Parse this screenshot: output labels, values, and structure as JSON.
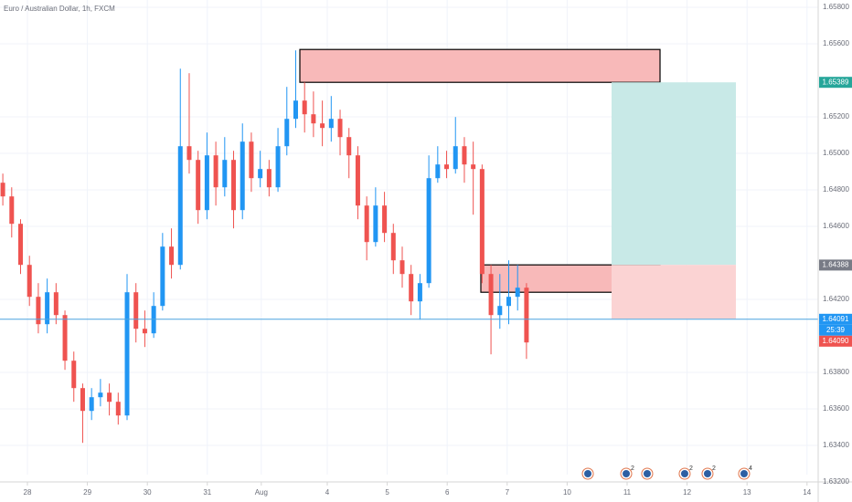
{
  "chart_data": {
    "type": "candlestick",
    "title": "Euro / Australian Dollar, 1h, FXCM",
    "up_color": "#2196f3",
    "down_color": "#ef5350",
    "grid": true,
    "xlim": [
      -0.457,
      13.186
    ],
    "ylim": [
      1.6324,
      1.6584
    ],
    "xticks": [
      {
        "value": 0,
        "label": "28"
      },
      {
        "value": 1,
        "label": "29"
      },
      {
        "value": 2,
        "label": "30"
      },
      {
        "value": 3,
        "label": "31"
      },
      {
        "value": 3.9,
        "label": "Aug"
      },
      {
        "value": 5,
        "label": "4"
      },
      {
        "value": 6,
        "label": "5"
      },
      {
        "value": 7,
        "label": "6"
      },
      {
        "value": 8,
        "label": "7"
      },
      {
        "value": 9,
        "label": "10"
      },
      {
        "value": 10,
        "label": "11"
      },
      {
        "value": 11,
        "label": "12"
      },
      {
        "value": 12,
        "label": "13"
      },
      {
        "value": 13,
        "label": "14"
      }
    ],
    "yticks": [
      {
        "value": 1.632,
        "label": "1.63200"
      },
      {
        "value": 1.634,
        "label": "1.63400"
      },
      {
        "value": 1.636,
        "label": "1.63600"
      },
      {
        "value": 1.638,
        "label": "1.63800"
      },
      {
        "value": 1.642,
        "label": "1.64200"
      },
      {
        "value": 1.646,
        "label": "1.64600"
      },
      {
        "value": 1.648,
        "label": "1.64800"
      },
      {
        "value": 1.65,
        "label": "1.65000"
      },
      {
        "value": 1.652,
        "label": "1.65200"
      },
      {
        "value": 1.656,
        "label": "1.65600"
      },
      {
        "value": 1.658,
        "label": "1.65800"
      }
    ],
    "x": [
      -0.41,
      -0.262,
      -0.114,
      0.034,
      0.182,
      0.33,
      0.478,
      0.626,
      0.774,
      0.922,
      1.07,
      1.218,
      1.366,
      1.514,
      1.662,
      1.81,
      1.958,
      2.106,
      2.254,
      2.402,
      2.55,
      2.698,
      2.846,
      2.994,
      3.142,
      3.29,
      3.438,
      3.586,
      3.734,
      3.882,
      4.03,
      4.178,
      4.326,
      4.474,
      4.622,
      4.77,
      4.918,
      5.066,
      5.214,
      5.362,
      5.51,
      5.658,
      5.806,
      5.954,
      6.102,
      6.25,
      6.398,
      6.546,
      6.694,
      6.842,
      6.99,
      7.138,
      7.286,
      7.434,
      7.582,
      7.73,
      7.878,
      8.026,
      8.174,
      8.322
    ],
    "open": [
      1.64839,
      1.64764,
      1.64614,
      1.64389,
      1.64214,
      1.64064,
      1.64239,
      1.64114,
      1.63864,
      1.63714,
      1.63589,
      1.63664,
      1.63689,
      1.63639,
      1.63564,
      1.64239,
      1.64039,
      1.64014,
      1.64164,
      1.64489,
      1.64389,
      1.65039,
      1.64964,
      1.64689,
      1.64989,
      1.64814,
      1.64964,
      1.64689,
      1.65064,
      1.64864,
      1.64914,
      1.64814,
      1.65039,
      1.65189,
      1.65289,
      1.65214,
      1.65164,
      1.65139,
      1.65189,
      1.65089,
      1.64989,
      1.64714,
      1.64514,
      1.64714,
      1.64564,
      1.64414,
      1.64339,
      1.64189,
      1.64289,
      1.64864,
      1.64939,
      1.64914,
      1.65039,
      1.64939,
      1.64914,
      1.64339,
      1.64114,
      1.64164,
      1.64214,
      1.64264
    ],
    "high": [
      1.64889,
      1.64814,
      1.64639,
      1.64439,
      1.64289,
      1.64314,
      1.64289,
      1.64139,
      1.63914,
      1.63739,
      1.63714,
      1.63764,
      1.63739,
      1.63689,
      1.64339,
      1.64289,
      1.64139,
      1.64239,
      1.64564,
      1.64589,
      1.65464,
      1.65439,
      1.65014,
      1.65114,
      1.65064,
      1.65089,
      1.65014,
      1.65164,
      1.65114,
      1.65014,
      1.64964,
      1.65139,
      1.65364,
      1.65564,
      1.65389,
      1.65339,
      1.65289,
      1.65314,
      1.65239,
      1.65139,
      1.65039,
      1.64764,
      1.64814,
      1.64789,
      1.64614,
      1.64489,
      1.64389,
      1.64339,
      1.64989,
      1.65039,
      1.65014,
      1.65199,
      1.65089,
      1.65064,
      1.64939,
      1.64389,
      1.64339,
      1.64414,
      1.64389,
      1.64289
    ],
    "low": [
      1.64714,
      1.64539,
      1.64339,
      1.64164,
      1.64014,
      1.64014,
      1.64064,
      1.63814,
      1.63639,
      1.63414,
      1.63539,
      1.63614,
      1.63564,
      1.63514,
      1.63539,
      1.63964,
      1.63939,
      1.63989,
      1.64139,
      1.64314,
      1.64364,
      1.64889,
      1.64614,
      1.64639,
      1.64714,
      1.64764,
      1.64589,
      1.64639,
      1.64789,
      1.64814,
      1.64764,
      1.64789,
      1.64989,
      1.65139,
      1.65114,
      1.65089,
      1.65039,
      1.65064,
      1.64989,
      1.64864,
      1.64639,
      1.64414,
      1.64489,
      1.64514,
      1.64339,
      1.64264,
      1.64114,
      1.64089,
      1.64264,
      1.64839,
      1.64864,
      1.64889,
      1.64839,
      1.64664,
      1.64289,
      1.63899,
      1.64039,
      1.64064,
      1.64139,
      1.63874
    ],
    "close": [
      1.64764,
      1.64614,
      1.64389,
      1.64214,
      1.64064,
      1.64239,
      1.64114,
      1.63864,
      1.63714,
      1.63589,
      1.63664,
      1.63689,
      1.63639,
      1.63564,
      1.64239,
      1.64039,
      1.64014,
      1.64164,
      1.64489,
      1.64389,
      1.65039,
      1.64964,
      1.64689,
      1.64989,
      1.64814,
      1.64964,
      1.64689,
      1.65064,
      1.64864,
      1.64914,
      1.64814,
      1.65039,
      1.65189,
      1.65289,
      1.65214,
      1.65164,
      1.65139,
      1.65189,
      1.65089,
      1.64989,
      1.64714,
      1.64514,
      1.64714,
      1.64564,
      1.64414,
      1.64339,
      1.64189,
      1.64289,
      1.64864,
      1.64939,
      1.64914,
      1.65039,
      1.64939,
      1.64914,
      1.64339,
      1.64114,
      1.64164,
      1.64214,
      1.64264,
      1.63964
    ],
    "zones": [
      {
        "x": [
          4.543,
          10.549
        ],
        "y": [
          1.65389,
          1.65569
        ],
        "fill": "#f8b9b9",
        "stroke": "#000000"
      },
      {
        "x": [
          7.561,
          10.549
        ],
        "y": [
          1.64239,
          1.64389
        ],
        "fill": "#f8b9b9",
        "stroke": "#000000"
      },
      {
        "x": [
          9.741,
          11.814
        ],
        "y": [
          1.64389,
          1.65389
        ],
        "fill": "#c8e9e7",
        "stroke": "none"
      },
      {
        "x": [
          9.741,
          11.814
        ],
        "y": [
          1.64094,
          1.64389
        ],
        "fill": "#fbd3d3",
        "stroke": "none"
      }
    ],
    "price_line": {
      "value": 1.64091,
      "color": "#4aa3df"
    },
    "price_tags": [
      {
        "value": 1.65389,
        "label": "1.65389",
        "color": "#26a69a"
      },
      {
        "value": 1.64388,
        "label": "1.64388",
        "color": "#787b86"
      },
      {
        "value": 1.64091,
        "label": "1.64091",
        "color": "#2196f3"
      },
      {
        "value": 1.64091,
        "label": "25:39",
        "color": "#2196f3"
      },
      {
        "value": 1.6409,
        "label": "1.64090",
        "color": "#ef5350"
      }
    ],
    "events": [
      {
        "x": 9.345,
        "count": null
      },
      {
        "x": 9.985,
        "count": 2
      },
      {
        "x": 10.335,
        "count": null
      },
      {
        "x": 10.96,
        "count": 2
      },
      {
        "x": 11.341,
        "count": 2
      },
      {
        "x": 11.951,
        "count": 4
      }
    ]
  }
}
